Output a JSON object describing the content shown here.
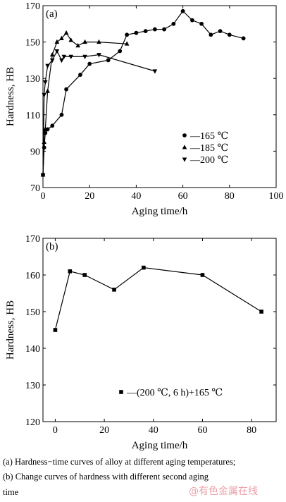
{
  "chart_data": [
    {
      "type": "line",
      "panel_label": "(a)",
      "xlabel": "Aging time/h",
      "ylabel": "Hardness, HB",
      "xlim": [
        0,
        100
      ],
      "ylim": [
        70,
        170
      ],
      "xticks": [
        0,
        20,
        40,
        60,
        80,
        100
      ],
      "yticks": [
        70,
        90,
        110,
        130,
        150,
        170
      ],
      "legend_position": "right",
      "series": [
        {
          "name": "—165 ℃",
          "marker": "circle",
          "x": [
            0,
            0.5,
            1,
            2,
            4,
            8,
            10,
            16,
            20,
            28,
            33,
            36,
            40,
            44,
            48,
            52,
            56,
            60,
            64,
            68,
            72,
            76,
            80,
            86
          ],
          "y": [
            77,
            92,
            100,
            102,
            104,
            110,
            124,
            132,
            138,
            140,
            145,
            154,
            155,
            156,
            157,
            157,
            160,
            167,
            162,
            160,
            154,
            156,
            154,
            152
          ]
        },
        {
          "name": "—185 ℃",
          "marker": "triangle-up",
          "x": [
            0,
            0.5,
            1,
            2,
            4,
            6,
            8,
            10,
            12,
            15,
            18,
            24,
            36
          ],
          "y": [
            77,
            95,
            102,
            123,
            143,
            150,
            152,
            155,
            151,
            148,
            150,
            150,
            149
          ]
        },
        {
          "name": "—200 ℃",
          "marker": "triangle-down",
          "x": [
            0,
            0.5,
            1,
            2,
            4,
            6,
            8,
            9,
            12,
            18,
            24,
            48
          ],
          "y": [
            77,
            121,
            128,
            137,
            140,
            145,
            140,
            142,
            142,
            142,
            143,
            134
          ]
        }
      ]
    },
    {
      "type": "line",
      "panel_label": "(b)",
      "xlabel": "Aging time/h",
      "ylabel": "Hardness, HB",
      "xlim": [
        -5,
        90
      ],
      "ylim": [
        120,
        170
      ],
      "xticks": [
        0,
        20,
        40,
        60,
        80
      ],
      "yticks": [
        120,
        130,
        140,
        150,
        160,
        170
      ],
      "legend_position": "bottom-center",
      "series": [
        {
          "name": "—(200 ℃, 6 h)+165 ℃",
          "marker": "square",
          "x": [
            0,
            6,
            12,
            24,
            36,
            60,
            84
          ],
          "y": [
            145,
            161,
            160,
            156,
            162,
            160,
            150
          ]
        }
      ]
    }
  ],
  "caption": {
    "line1": "(a)  Hardness−time curves of alloy at different aging temperatures;",
    "line2": "(b)  Change curves of hardness with different second aging",
    "line3": "time"
  },
  "watermark": "@有色金属在线"
}
